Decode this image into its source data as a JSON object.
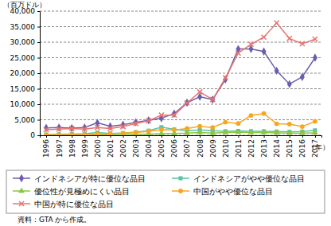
{
  "chart_data": {
    "type": "line",
    "y_label": "（百万ドル）",
    "x_label": "（年）",
    "source": "資料：GTA から作成。",
    "categories": [
      "1996",
      "1997",
      "1998",
      "1999",
      "2000",
      "2001",
      "2002",
      "2003",
      "2004",
      "2005",
      "2006",
      "2007",
      "2008",
      "2009",
      "2010",
      "2011",
      "2012",
      "2013",
      "2014",
      "2015",
      "2016",
      "2017"
    ],
    "ylim": [
      0,
      40000
    ],
    "yticks": [
      0,
      {
        "value": 5000,
        "label": "5,000"
      },
      {
        "value": 10000,
        "label": "10,000"
      },
      {
        "value": 15000,
        "label": "15,000"
      },
      {
        "value": 20000,
        "label": "20,000"
      },
      {
        "value": 25000,
        "label": "25,000"
      },
      {
        "value": 30000,
        "label": "30,000"
      },
      {
        "value": 35000,
        "label": "35,000"
      },
      {
        "value": 40000,
        "label": "40,000"
      }
    ],
    "grid": true,
    "legend": "bottom",
    "series": [
      {
        "name": "インドネシアが特に優位な品目",
        "color": "#6b5fad",
        "marker": "diamond",
        "line_style": "solid",
        "values": [
          2400,
          2500,
          2300,
          2500,
          4000,
          2900,
          3400,
          4200,
          4800,
          5500,
          7000,
          10500,
          12400,
          11500,
          18000,
          27800,
          27800,
          27000,
          20800,
          16500,
          18800,
          25000
        ]
      },
      {
        "name": "インドネシアがやや優位な品目",
        "color": "#5cc3a3",
        "marker": "square",
        "line_style": "solid",
        "values": [
          200,
          300,
          400,
          500,
          900,
          600,
          700,
          1000,
          1500,
          2600,
          1900,
          1500,
          1700,
          1500,
          1300,
          1400,
          1300,
          1300,
          1200,
          1100,
          1200,
          1600
        ]
      },
      {
        "name": "優位性が見極めにくい品目",
        "color": "#8dc63f",
        "marker": "triangle",
        "line_style": "solid",
        "values": [
          100,
          100,
          100,
          100,
          200,
          200,
          200,
          300,
          400,
          500,
          600,
          700,
          900,
          700,
          900,
          1000,
          900,
          900,
          800,
          700,
          700,
          800
        ]
      },
      {
        "name": "中国がやや優位な品目",
        "color": "#f6a623",
        "marker": "circle",
        "line_style": "solid",
        "values": [
          100,
          100,
          200,
          200,
          400,
          500,
          700,
          900,
          1300,
          1800,
          1700,
          2200,
          2900,
          2500,
          4200,
          3800,
          6400,
          7000,
          3700,
          3600,
          2800,
          4500
        ]
      },
      {
        "name": "中国が特に優位な品目",
        "color": "#e8746f",
        "marker": "x",
        "line_style": "solid",
        "values": [
          1800,
          2000,
          2200,
          2000,
          2500,
          2200,
          2800,
          3800,
          4700,
          6500,
          6500,
          10400,
          14000,
          11500,
          18500,
          26500,
          29300,
          31600,
          36200,
          31200,
          29500,
          31000
        ]
      }
    ]
  }
}
